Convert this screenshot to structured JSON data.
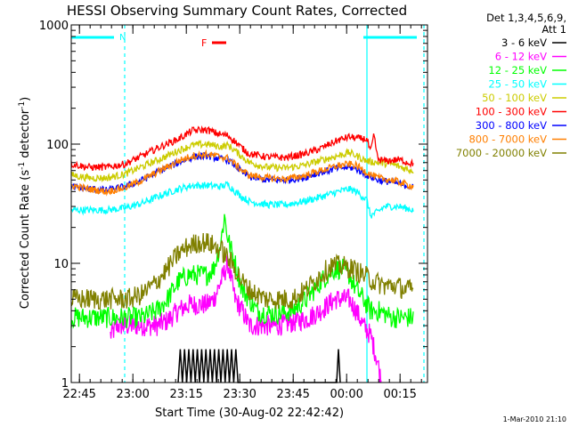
{
  "chart_data": {
    "type": "line",
    "title": "HESSI Observing Summary Count Rates, Corrected",
    "xlabel": "Start Time (30-Aug-02 22:42:42)",
    "ylabel_main": "Corrected Count Rate (s",
    "ylabel_exp1": "-1",
    "ylabel_mid": " detector",
    "ylabel_exp2": "-1",
    "ylabel_end": ")",
    "yscale": "log",
    "xlim_minutes": [
      0,
      100
    ],
    "ylim": [
      1,
      1000
    ],
    "x_ticks": [
      {
        "min": 2.3,
        "label": "22:45"
      },
      {
        "min": 17.3,
        "label": "23:00"
      },
      {
        "min": 32.3,
        "label": "23:15"
      },
      {
        "min": 47.3,
        "label": "23:30"
      },
      {
        "min": 62.3,
        "label": "23:45"
      },
      {
        "min": 77.3,
        "label": "00:00"
      },
      {
        "min": 92.3,
        "label": "00:15"
      }
    ],
    "y_ticks": [
      {
        "value": 1,
        "label": "1"
      },
      {
        "value": 10,
        "label": "10"
      },
      {
        "value": 100,
        "label": "100"
      },
      {
        "value": 1000,
        "label": "1000"
      }
    ],
    "legend_title": "Det 1,3,4,5,6,9,",
    "legend_subtitle": "Att 1",
    "series": [
      {
        "name": "3 - 6 keV",
        "color": "#000000",
        "points": [
          [
            30,
            1
          ],
          [
            30.6,
            1.9
          ],
          [
            31.2,
            1
          ],
          [
            31.8,
            1.9
          ],
          [
            32.4,
            1
          ],
          [
            33,
            1.9
          ],
          [
            33.6,
            1
          ],
          [
            34.2,
            1.9
          ],
          [
            34.8,
            1
          ],
          [
            35.4,
            1.9
          ],
          [
            36,
            1
          ],
          [
            36.6,
            1.9
          ],
          [
            37.2,
            1
          ],
          [
            37.8,
            1.9
          ],
          [
            38.4,
            1
          ],
          [
            39,
            1.9
          ],
          [
            39.6,
            1
          ],
          [
            40.2,
            1.9
          ],
          [
            40.8,
            1
          ],
          [
            41.4,
            1.9
          ],
          [
            42,
            1
          ],
          [
            42.6,
            1.9
          ],
          [
            43.2,
            1
          ],
          [
            43.8,
            1.9
          ],
          [
            44.4,
            1
          ],
          [
            45,
            1.9
          ],
          [
            45.6,
            1
          ],
          [
            46.2,
            1.9
          ],
          [
            46.8,
            1
          ],
          [
            50,
            1
          ],
          [
            74.5,
            1
          ],
          [
            75,
            1.9
          ],
          [
            75.5,
            1
          ]
        ]
      },
      {
        "name": "6 - 12 keV",
        "color": "#ff00ff",
        "points": [
          [
            11,
            2.5
          ],
          [
            13,
            3
          ],
          [
            16,
            3
          ],
          [
            20,
            3
          ],
          [
            24,
            3
          ],
          [
            27,
            3.3
          ],
          [
            30,
            4
          ],
          [
            33,
            4.5
          ],
          [
            36,
            4.5
          ],
          [
            38,
            4.5
          ],
          [
            40,
            5
          ],
          [
            42,
            7
          ],
          [
            44,
            10
          ],
          [
            45,
            7
          ],
          [
            46,
            5
          ],
          [
            48,
            4
          ],
          [
            50,
            3
          ],
          [
            52,
            3
          ],
          [
            55,
            3
          ],
          [
            58,
            3
          ],
          [
            62,
            3.2
          ],
          [
            66,
            3.4
          ],
          [
            70,
            4
          ],
          [
            74,
            5
          ],
          [
            78,
            5
          ],
          [
            80,
            4
          ],
          [
            82,
            3
          ],
          [
            84,
            2.5
          ],
          [
            86,
            1.5
          ],
          [
            87,
            1
          ]
        ]
      },
      {
        "name": "12 - 25 keV",
        "color": "#00ff00",
        "points": [
          [
            0,
            3.5
          ],
          [
            4,
            3.5
          ],
          [
            8,
            3.5
          ],
          [
            12,
            3.5
          ],
          [
            16,
            3.5
          ],
          [
            20,
            3.5
          ],
          [
            24,
            4
          ],
          [
            27,
            5
          ],
          [
            30,
            7
          ],
          [
            33,
            8
          ],
          [
            36,
            8
          ],
          [
            38,
            8
          ],
          [
            40,
            9
          ],
          [
            42,
            15
          ],
          [
            43,
            25
          ],
          [
            44,
            16
          ],
          [
            46,
            10
          ],
          [
            48,
            6
          ],
          [
            50,
            5
          ],
          [
            52,
            4
          ],
          [
            55,
            3.8
          ],
          [
            58,
            3.8
          ],
          [
            62,
            4
          ],
          [
            66,
            5
          ],
          [
            70,
            7
          ],
          [
            72,
            8
          ],
          [
            74,
            9
          ],
          [
            76,
            9
          ],
          [
            78,
            8
          ],
          [
            80,
            6
          ],
          [
            82,
            5
          ],
          [
            84,
            4
          ],
          [
            86,
            4
          ],
          [
            88,
            3.8
          ],
          [
            90,
            3.5
          ],
          [
            92,
            3.5
          ],
          [
            94,
            3.5
          ],
          [
            96,
            3.5
          ]
        ]
      },
      {
        "name": "25 - 50 keV",
        "color": "#00ffff",
        "points": [
          [
            0,
            28
          ],
          [
            5,
            28
          ],
          [
            10,
            28
          ],
          [
            15,
            29
          ],
          [
            20,
            32
          ],
          [
            25,
            37
          ],
          [
            30,
            42
          ],
          [
            34,
            45
          ],
          [
            38,
            45
          ],
          [
            42,
            44
          ],
          [
            44,
            46
          ],
          [
            46,
            40
          ],
          [
            48,
            36
          ],
          [
            50,
            33
          ],
          [
            55,
            31
          ],
          [
            60,
            31
          ],
          [
            65,
            33
          ],
          [
            70,
            36
          ],
          [
            75,
            40
          ],
          [
            78,
            42
          ],
          [
            80,
            40
          ],
          [
            83,
            34
          ],
          [
            84,
            25
          ],
          [
            86,
            27
          ],
          [
            88,
            30
          ],
          [
            92,
            30
          ],
          [
            96,
            28
          ]
        ]
      },
      {
        "name": "50 - 100 keV",
        "color": "#cccc00",
        "points": [
          [
            0,
            55
          ],
          [
            5,
            52
          ],
          [
            10,
            52
          ],
          [
            15,
            56
          ],
          [
            20,
            65
          ],
          [
            25,
            75
          ],
          [
            30,
            88
          ],
          [
            34,
            98
          ],
          [
            38,
            100
          ],
          [
            42,
            95
          ],
          [
            44,
            98
          ],
          [
            46,
            88
          ],
          [
            48,
            78
          ],
          [
            50,
            70
          ],
          [
            55,
            64
          ],
          [
            60,
            63
          ],
          [
            65,
            66
          ],
          [
            70,
            73
          ],
          [
            75,
            80
          ],
          [
            78,
            85
          ],
          [
            80,
            80
          ],
          [
            83,
            72
          ],
          [
            86,
            70
          ],
          [
            90,
            68
          ],
          [
            94,
            62
          ],
          [
            96,
            60
          ]
        ]
      },
      {
        "name": "100 - 300 keV",
        "color": "#ff0000",
        "points": [
          [
            0,
            68
          ],
          [
            5,
            64
          ],
          [
            10,
            64
          ],
          [
            15,
            68
          ],
          [
            20,
            80
          ],
          [
            25,
            95
          ],
          [
            30,
            110
          ],
          [
            34,
            130
          ],
          [
            38,
            132
          ],
          [
            42,
            120
          ],
          [
            44,
            118
          ],
          [
            46,
            105
          ],
          [
            48,
            92
          ],
          [
            50,
            83
          ],
          [
            55,
            78
          ],
          [
            60,
            77
          ],
          [
            65,
            82
          ],
          [
            70,
            92
          ],
          [
            75,
            108
          ],
          [
            78,
            115
          ],
          [
            80,
            112
          ],
          [
            83,
            110
          ],
          [
            84,
            85
          ],
          [
            85,
            120
          ],
          [
            86,
            75
          ],
          [
            88,
            72
          ],
          [
            92,
            74
          ],
          [
            96,
            68
          ]
        ]
      },
      {
        "name": "300 - 800 keV",
        "color": "#0000ff",
        "points": [
          [
            0,
            44
          ],
          [
            5,
            42
          ],
          [
            10,
            41
          ],
          [
            15,
            44
          ],
          [
            20,
            50
          ],
          [
            25,
            60
          ],
          [
            30,
            70
          ],
          [
            34,
            78
          ],
          [
            38,
            80
          ],
          [
            42,
            75
          ],
          [
            44,
            74
          ],
          [
            46,
            66
          ],
          [
            48,
            58
          ],
          [
            50,
            53
          ],
          [
            55,
            50
          ],
          [
            60,
            50
          ],
          [
            65,
            52
          ],
          [
            70,
            58
          ],
          [
            75,
            63
          ],
          [
            78,
            64
          ],
          [
            80,
            62
          ],
          [
            83,
            55
          ],
          [
            86,
            50
          ],
          [
            90,
            48
          ],
          [
            94,
            45
          ],
          [
            96,
            43
          ]
        ]
      },
      {
        "name": "800 - 7000 keV",
        "color": "#ff7f00",
        "points": [
          [
            0,
            45
          ],
          [
            5,
            42
          ],
          [
            10,
            40
          ],
          [
            15,
            43
          ],
          [
            20,
            50
          ],
          [
            25,
            60
          ],
          [
            30,
            72
          ],
          [
            34,
            80
          ],
          [
            38,
            82
          ],
          [
            42,
            78
          ],
          [
            44,
            76
          ],
          [
            46,
            68
          ],
          [
            48,
            60
          ],
          [
            50,
            55
          ],
          [
            55,
            52
          ],
          [
            60,
            51
          ],
          [
            65,
            54
          ],
          [
            70,
            60
          ],
          [
            75,
            66
          ],
          [
            78,
            68
          ],
          [
            80,
            66
          ],
          [
            83,
            58
          ],
          [
            86,
            52
          ],
          [
            90,
            50
          ],
          [
            94,
            46
          ],
          [
            96,
            44
          ]
        ]
      },
      {
        "name": "7000 - 20000 keV",
        "color": "#808000",
        "points": [
          [
            0,
            5
          ],
          [
            4,
            5
          ],
          [
            8,
            5
          ],
          [
            12,
            5
          ],
          [
            16,
            5
          ],
          [
            20,
            5.5
          ],
          [
            24,
            7
          ],
          [
            27,
            9
          ],
          [
            30,
            12
          ],
          [
            33,
            14
          ],
          [
            36,
            15
          ],
          [
            38,
            15
          ],
          [
            40,
            14
          ],
          [
            42,
            13
          ],
          [
            44,
            11
          ],
          [
            46,
            9
          ],
          [
            48,
            7
          ],
          [
            50,
            6
          ],
          [
            52,
            5.5
          ],
          [
            55,
            5
          ],
          [
            58,
            5
          ],
          [
            62,
            5
          ],
          [
            66,
            6
          ],
          [
            70,
            8
          ],
          [
            73,
            9.5
          ],
          [
            76,
            9.5
          ],
          [
            79,
            9
          ],
          [
            82,
            8
          ],
          [
            85,
            7
          ],
          [
            88,
            6.5
          ],
          [
            91,
            6.5
          ],
          [
            94,
            6
          ],
          [
            96,
            6
          ]
        ]
      }
    ],
    "markers": {
      "night_label": "N",
      "night_color": "#00ffff",
      "night_bars": [
        [
          -3,
          12
        ],
        [
          82,
          99
        ]
      ],
      "night_dashes": [
        15,
        99
      ],
      "solid_line_at": 83,
      "flare_label": "F",
      "flare_color": "#ff0000",
      "flare_bar": [
        39.5,
        43.5
      ]
    }
  },
  "footer": {
    "date_stamp": "1-Mar-2010 21:10"
  }
}
